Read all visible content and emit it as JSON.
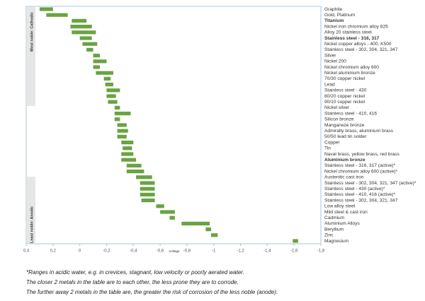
{
  "chart_data": {
    "type": "floating-bar",
    "xlabel": "Voltage",
    "side_labels": [
      "Most noble: Cathodic",
      "Least noble: Anodic"
    ],
    "color": "#6aa342",
    "bold": [
      "Titanium",
      "Stainless steel - 316, 317",
      "Aluminium bronze"
    ],
    "categories": [
      "Graphite",
      "Gold, Platinum",
      "Titanium",
      "Nickel iron chromium alloy 825",
      "Alloy 20 stainless steel",
      "Stainless steel - 316, 317",
      "Nickel copper alloys - 400, K500",
      "Stainless steel - 302, 304, 321, 347",
      "Silver",
      "Nickel 200",
      "Nickel chromium alloy 600",
      "Nickel aluminium bronze",
      "70/30 copper nickel",
      "Lead",
      "Stainless steel - 430",
      "80/20 copper nickel",
      "90/10 copper nickel",
      "Nickel silver",
      "Stainless steel - 410, 416",
      "Silicon bronze",
      "Manganeze bronze",
      "Admiralty brass, aluminium brass",
      "50/50 lead tin solder",
      "Copper",
      "Tin",
      "Naval brass, yellow brass, red brass",
      "Aluminium bronze",
      "Stainless steel - 316, 317 (active)*",
      "Nickel chromium alloy 600 (active)*",
      "Austenitic cast iron",
      "Stainless steel - 302, 304, 321, 347 (active)*",
      "Stainless steel - 430 (active)*",
      "Stainless steel - 410, 416 (active)*",
      "Stainless steel - 302, 304, 321, 347",
      "Low alloy steel",
      "Mild steel & cast iron",
      "Cadmium",
      "Aluminium Alloys",
      "Beryllium",
      "Zinc",
      "Magnesium"
    ],
    "from": [
      0.3,
      0.25,
      0.06,
      0.07,
      0.06,
      0,
      -0.02,
      -0.05,
      -0.1,
      -0.1,
      -0.1,
      -0.12,
      -0.18,
      -0.19,
      -0.2,
      -0.2,
      -0.21,
      -0.26,
      -0.26,
      -0.26,
      -0.28,
      -0.28,
      -0.28,
      -0.31,
      -0.32,
      -0.31,
      -0.31,
      -0.35,
      -0.35,
      -0.42,
      -0.45,
      -0.45,
      -0.45,
      -0.46,
      -0.57,
      -0.6,
      -0.67,
      -0.76,
      -0.94,
      -0.98,
      -1.59
    ],
    "to": [
      0.2,
      0.09,
      -0.05,
      -0.09,
      -0.12,
      -0.09,
      -0.13,
      -0.1,
      -0.15,
      -0.2,
      -0.15,
      -0.25,
      -0.23,
      -0.25,
      -0.3,
      -0.27,
      -0.28,
      -0.3,
      -0.38,
      -0.3,
      -0.35,
      -0.36,
      -0.35,
      -0.4,
      -0.39,
      -0.4,
      -0.42,
      -0.46,
      -0.48,
      -0.54,
      -0.56,
      -0.56,
      -0.56,
      -0.56,
      -0.63,
      -0.71,
      -0.71,
      -0.97,
      -0.98,
      -1.03,
      -1.63
    ],
    "xlim": [
      0.4,
      -1.8
    ],
    "xticks": [
      {
        "value": 0.4,
        "label": "0,4"
      },
      {
        "value": 0.2,
        "label": "0,2"
      },
      0,
      {
        "value": -0.2,
        "label": "-0,2"
      },
      {
        "value": -0.4,
        "label": "-0,4"
      },
      {
        "value": -0.6,
        "label": "-0,6"
      },
      {
        "value": -0.8,
        "label": "-0,8"
      },
      -1,
      {
        "value": -1.2,
        "label": "-1,2"
      },
      {
        "value": -1.4,
        "label": "-1,4"
      },
      {
        "value": -1.6,
        "label": "-1,6"
      },
      {
        "value": -1.8,
        "label": "-1,8"
      }
    ]
  },
  "notes": [
    "*Ranges in acidic water, e.g. in crevices, stagnant, low velocity or poorly aerated water.",
    "The closer 2 metals in the table are to each other, the less prone they are to corrode.",
    "The further away 2 metals in the table are, the greater the risk of corrosion of the less noble (anode)."
  ]
}
